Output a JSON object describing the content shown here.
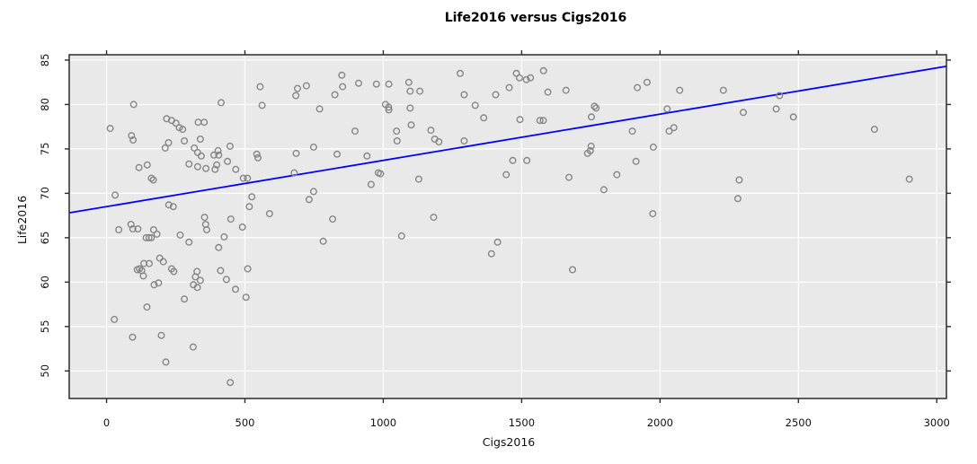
{
  "chart_data": {
    "type": "scatter",
    "title": "Life2016 versus Cigs2016",
    "xlabel": "Cigs2016",
    "ylabel": "Life2016",
    "x_ticks": [
      0,
      500,
      1000,
      1500,
      2000,
      2500,
      3000
    ],
    "y_ticks": [
      50,
      55,
      60,
      65,
      70,
      75,
      80,
      85
    ],
    "xlim": [
      -135,
      3035
    ],
    "ylim": [
      46.9,
      85.6
    ],
    "grid": true,
    "legend": "none",
    "colors": {
      "plot_background": "#e9e9e9",
      "gridline": "#ffffff",
      "point_stroke": "#868686",
      "regression_line": "#0000ff",
      "frame": "#2b2b2b",
      "text": "#111111"
    },
    "regression_line": {
      "x1": -135,
      "y1": 67.8,
      "x2": 3035,
      "y2": 84.3
    },
    "points": [
      [
        555,
        82
      ],
      [
        690,
        81.8
      ],
      [
        722,
        82.1
      ],
      [
        850,
        83.3
      ],
      [
        853,
        82
      ],
      [
        825,
        81.1
      ],
      [
        911,
        82.4
      ],
      [
        684,
        81
      ],
      [
        414,
        80.2
      ],
      [
        562,
        79.9
      ],
      [
        98,
        80
      ],
      [
        770,
        79.5
      ],
      [
        217,
        78.4
      ],
      [
        235,
        78.2
      ],
      [
        251,
        77.9
      ],
      [
        263,
        77.4
      ],
      [
        275,
        77.2
      ],
      [
        331,
        78
      ],
      [
        353,
        78
      ],
      [
        13,
        77.3
      ],
      [
        90,
        76.5
      ],
      [
        96,
        76
      ],
      [
        339,
        76.1
      ],
      [
        281,
        75.9
      ],
      [
        224,
        75.7
      ],
      [
        212,
        75.1
      ],
      [
        446,
        75.3
      ],
      [
        317,
        75.1
      ],
      [
        329,
        74.6
      ],
      [
        403,
        74.8
      ],
      [
        388,
        74.3
      ],
      [
        405,
        74.3
      ],
      [
        342,
        74.2
      ],
      [
        543,
        74.4
      ],
      [
        547,
        74
      ],
      [
        685,
        74.5
      ],
      [
        748,
        75.2
      ],
      [
        833,
        74.4
      ],
      [
        941,
        74.2
      ],
      [
        898,
        77
      ],
      [
        298,
        73.3
      ],
      [
        329,
        73
      ],
      [
        359,
        72.8
      ],
      [
        392,
        72.7
      ],
      [
        398,
        73.2
      ],
      [
        437,
        73.6
      ],
      [
        467,
        72.7
      ],
      [
        117,
        72.9
      ],
      [
        147,
        73.2
      ],
      [
        678,
        72.3
      ],
      [
        494,
        71.7
      ],
      [
        509,
        71.7
      ],
      [
        162,
        71.7
      ],
      [
        169,
        71.5
      ],
      [
        748,
        70.2
      ],
      [
        732,
        69.3
      ],
      [
        31,
        69.8
      ],
      [
        525,
        69.6
      ],
      [
        516,
        68.5
      ],
      [
        589,
        67.7
      ],
      [
        225,
        68.7
      ],
      [
        241,
        68.5
      ],
      [
        817,
        67.1
      ],
      [
        354,
        67.3
      ],
      [
        358,
        66.5
      ],
      [
        362,
        65.9
      ],
      [
        449,
        67.1
      ],
      [
        491,
        66.2
      ],
      [
        88,
        66.5
      ],
      [
        95,
        66
      ],
      [
        113,
        66
      ],
      [
        44,
        65.9
      ],
      [
        143,
        65
      ],
      [
        153,
        65
      ],
      [
        162,
        65
      ],
      [
        170,
        65.9
      ],
      [
        182,
        65.4
      ],
      [
        266,
        65.3
      ],
      [
        298,
        64.5
      ],
      [
        425,
        65.1
      ],
      [
        405,
        63.9
      ],
      [
        783,
        64.6
      ],
      [
        192,
        62.7
      ],
      [
        205,
        62.3
      ],
      [
        154,
        62.1
      ],
      [
        135,
        62.1
      ],
      [
        111,
        61.4
      ],
      [
        119,
        61.5
      ],
      [
        127,
        61.3
      ],
      [
        133,
        60.7
      ],
      [
        235,
        61.5
      ],
      [
        243,
        61.2
      ],
      [
        327,
        61.2
      ],
      [
        412,
        61.3
      ],
      [
        510,
        61.5
      ],
      [
        321,
        60.6
      ],
      [
        339,
        60.2
      ],
      [
        314,
        59.7
      ],
      [
        328,
        59.4
      ],
      [
        433,
        60.3
      ],
      [
        172,
        59.7
      ],
      [
        188,
        59.9
      ],
      [
        466,
        59.2
      ],
      [
        281,
        58.1
      ],
      [
        504,
        58.3
      ],
      [
        146,
        57.2
      ],
      [
        28,
        55.8
      ],
      [
        94,
        53.8
      ],
      [
        198,
        54
      ],
      [
        313,
        52.7
      ],
      [
        214,
        51
      ],
      [
        447,
        48.7
      ],
      [
        975,
        82.3
      ],
      [
        1020,
        82.3
      ],
      [
        1092,
        82.5
      ],
      [
        1097,
        81.5
      ],
      [
        1132,
        81.5
      ],
      [
        1278,
        83.5
      ],
      [
        1481,
        83.5
      ],
      [
        1492,
        83
      ],
      [
        1517,
        82.8
      ],
      [
        1532,
        83
      ],
      [
        1579,
        83.8
      ],
      [
        1292,
        81.1
      ],
      [
        1406,
        81.1
      ],
      [
        1455,
        81.9
      ],
      [
        1595,
        81.4
      ],
      [
        1660,
        81.6
      ],
      [
        1918,
        81.9
      ],
      [
        1953,
        82.5
      ],
      [
        1008,
        80
      ],
      [
        1019,
        79.7
      ],
      [
        1020,
        79.4
      ],
      [
        1097,
        79.6
      ],
      [
        1332,
        79.9
      ],
      [
        1763,
        79.8
      ],
      [
        1769,
        79.6
      ],
      [
        1363,
        78.5
      ],
      [
        1101,
        77.7
      ],
      [
        1494,
        78.3
      ],
      [
        1566,
        78.2
      ],
      [
        1578,
        78.2
      ],
      [
        1752,
        78.6
      ],
      [
        1048,
        77
      ],
      [
        1050,
        75.9
      ],
      [
        1172,
        77.1
      ],
      [
        1900,
        77
      ],
      [
        1186,
        76.1
      ],
      [
        1201,
        75.8
      ],
      [
        1292,
        75.9
      ],
      [
        1751,
        75.3
      ],
      [
        1748,
        74.8
      ],
      [
        1738,
        74.5
      ],
      [
        1976,
        75.2
      ],
      [
        1913,
        73.6
      ],
      [
        1468,
        73.7
      ],
      [
        1519,
        73.7
      ],
      [
        982,
        72.3
      ],
      [
        990,
        72.2
      ],
      [
        956,
        71
      ],
      [
        1128,
        71.6
      ],
      [
        1444,
        72.1
      ],
      [
        1671,
        71.8
      ],
      [
        1844,
        72.1
      ],
      [
        1797,
        70.4
      ],
      [
        1182,
        67.3
      ],
      [
        1974,
        67.7
      ],
      [
        1066,
        65.2
      ],
      [
        1413,
        64.5
      ],
      [
        1391,
        63.2
      ],
      [
        1684,
        61.4
      ],
      [
        2071,
        81.6
      ],
      [
        2229,
        81.6
      ],
      [
        2432,
        81
      ],
      [
        2026,
        79.5
      ],
      [
        2301,
        79.1
      ],
      [
        2420,
        79.5
      ],
      [
        2482,
        78.6
      ],
      [
        2033,
        77
      ],
      [
        2050,
        77.4
      ],
      [
        2775,
        77.2
      ],
      [
        2286,
        71.5
      ],
      [
        2901,
        71.6
      ],
      [
        2281,
        69.4
      ]
    ]
  }
}
